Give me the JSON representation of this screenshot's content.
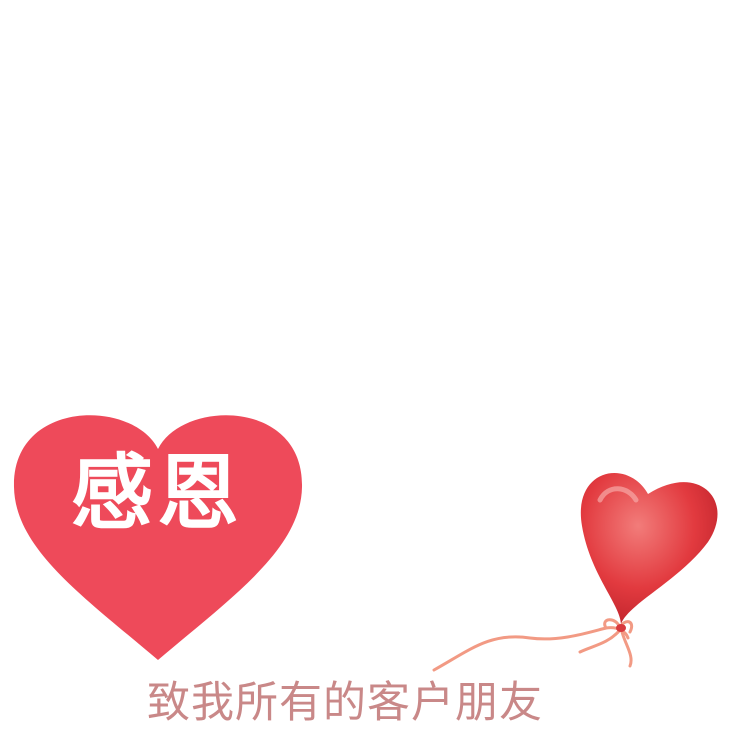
{
  "heart_card": {
    "title": "感恩",
    "heart_color": "#EE4A5A",
    "title_color": "#FFFFFF"
  },
  "balloon": {
    "icon": "heart-balloon-icon",
    "balloon_color": "#E23A3F",
    "ribbon_color": "#F29A84"
  },
  "subtitle": {
    "text": "致我所有的客户朋友",
    "color": "#C98888"
  }
}
